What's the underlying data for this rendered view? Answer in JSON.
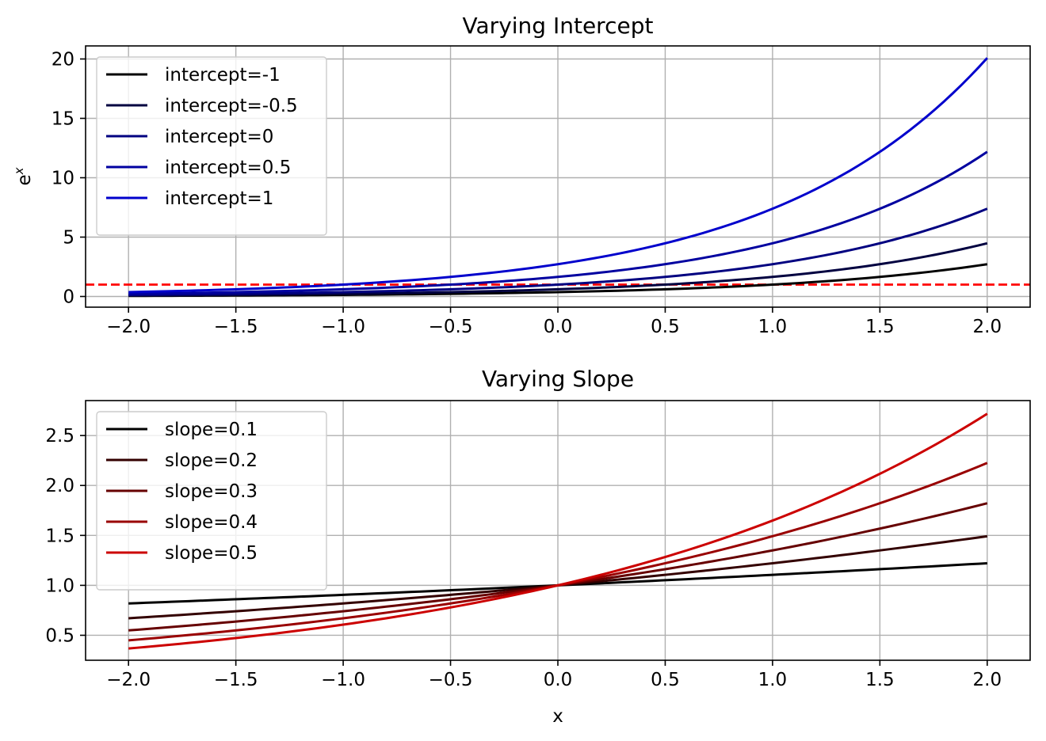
{
  "chart_data": [
    {
      "type": "line",
      "title": "Varying Intercept",
      "xlabel": "",
      "ylabel": "e^x",
      "ylabel_base": "e",
      "ylabel_sup": "x",
      "xlim": [
        -2.2,
        2.2
      ],
      "ylim": [
        -0.9,
        21.1
      ],
      "xticks": [
        -2.0,
        -1.5,
        -1.0,
        -0.5,
        0.0,
        0.5,
        1.0,
        1.5,
        2.0
      ],
      "xtick_labels": [
        "−2.0",
        "−1.5",
        "−1.0",
        "−0.5",
        "0.0",
        "0.5",
        "1.0",
        "1.5",
        "2.0"
      ],
      "yticks": [
        0,
        5,
        10,
        15,
        20
      ],
      "ytick_labels": [
        "0",
        "5",
        "10",
        "15",
        "20"
      ],
      "grid": true,
      "legend_position": "upper-left",
      "function": "exp(x + intercept)",
      "x_range": [
        -2,
        2
      ],
      "series": [
        {
          "name": "intercept=-1",
          "intercept": -1,
          "color": "#000000"
        },
        {
          "name": "intercept=-0.5",
          "intercept": -0.5,
          "color": "#000040"
        },
        {
          "name": "intercept=0",
          "intercept": 0,
          "color": "#000080"
        },
        {
          "name": "intercept=0.5",
          "intercept": 0.5,
          "color": "#0000a0"
        },
        {
          "name": "intercept=1",
          "intercept": 1,
          "color": "#0000cc"
        }
      ],
      "reference_line": {
        "y": 1,
        "color": "#ff0000",
        "style": "dashed"
      }
    },
    {
      "type": "line",
      "title": "Varying Slope",
      "xlabel": "x",
      "ylabel": "",
      "xlim": [
        -2.2,
        2.2
      ],
      "ylim": [
        0.25,
        2.85
      ],
      "xticks": [
        -2.0,
        -1.5,
        -1.0,
        -0.5,
        0.0,
        0.5,
        1.0,
        1.5,
        2.0
      ],
      "xtick_labels": [
        "−2.0",
        "−1.5",
        "−1.0",
        "−0.5",
        "0.0",
        "0.5",
        "1.0",
        "1.5",
        "2.0"
      ],
      "yticks": [
        0.5,
        1.0,
        1.5,
        2.0,
        2.5
      ],
      "ytick_labels": [
        "0.5",
        "1.0",
        "1.5",
        "2.0",
        "2.5"
      ],
      "grid": true,
      "legend_position": "upper-left",
      "function": "exp(slope * x)",
      "x_range": [
        -2,
        2
      ],
      "series": [
        {
          "name": "slope=0.1",
          "slope": 0.1,
          "color": "#000000"
        },
        {
          "name": "slope=0.2",
          "slope": 0.2,
          "color": "#330000"
        },
        {
          "name": "slope=0.3",
          "slope": 0.3,
          "color": "#660000"
        },
        {
          "name": "slope=0.4",
          "slope": 0.4,
          "color": "#990000"
        },
        {
          "name": "slope=0.5",
          "slope": 0.5,
          "color": "#cc0000"
        }
      ]
    }
  ]
}
